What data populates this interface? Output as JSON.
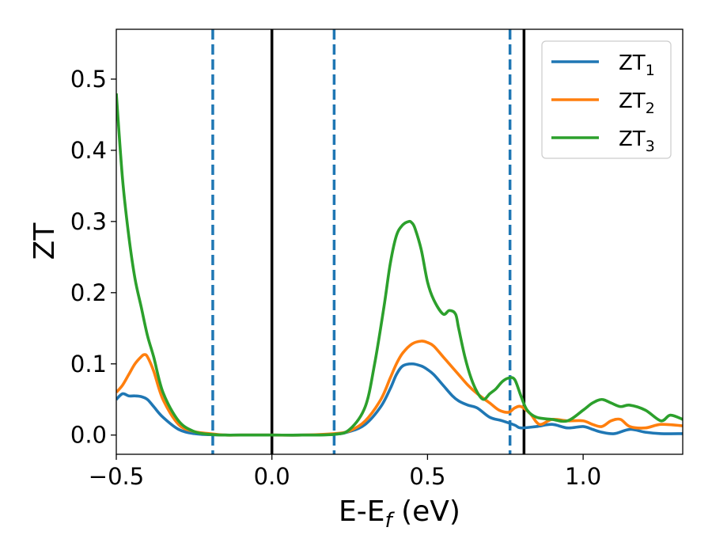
{
  "chart_data": {
    "type": "line",
    "xlabel": {
      "main": "E-E",
      "sub": "f",
      "unit": " (eV)"
    },
    "ylabel": "ZT",
    "xlim": [
      -0.5,
      1.32
    ],
    "ylim": [
      -0.027,
      0.57
    ],
    "xticks": [
      -0.5,
      0.0,
      0.5,
      1.0
    ],
    "xtick_labels": [
      "−0.5",
      "0.0",
      "0.5",
      "1.0"
    ],
    "yticks": [
      0.0,
      0.1,
      0.2,
      0.3,
      0.4,
      0.5
    ],
    "ytick_labels": [
      "0.0",
      "0.1",
      "0.2",
      "0.3",
      "0.4",
      "0.5"
    ],
    "grid": false,
    "legend_position": "top-right",
    "vlines": [
      {
        "x": -0.19,
        "style": "dashed",
        "color": "#1f77b4"
      },
      {
        "x": 0.0,
        "style": "solid",
        "color": "#000000"
      },
      {
        "x": 0.2,
        "style": "dashed",
        "color": "#1f77b4"
      },
      {
        "x": 0.765,
        "style": "dashed",
        "color": "#1f77b4"
      },
      {
        "x": 0.81,
        "style": "solid",
        "color": "#000000"
      }
    ],
    "series": [
      {
        "name": "ZT",
        "name_sub": "1",
        "color": "#1f77b4",
        "x": [
          -0.5,
          -0.48,
          -0.46,
          -0.44,
          -0.42,
          -0.4,
          -0.38,
          -0.35,
          -0.3,
          -0.25,
          -0.2,
          -0.15,
          -0.1,
          0.0,
          0.1,
          0.2,
          0.25,
          0.3,
          0.35,
          0.38,
          0.4,
          0.42,
          0.45,
          0.48,
          0.5,
          0.52,
          0.55,
          0.58,
          0.6,
          0.63,
          0.66,
          0.7,
          0.74,
          0.78,
          0.8,
          0.85,
          0.9,
          0.95,
          1.0,
          1.03,
          1.06,
          1.1,
          1.15,
          1.2,
          1.25,
          1.32
        ],
        "y": [
          0.05,
          0.058,
          0.055,
          0.055,
          0.054,
          0.05,
          0.04,
          0.025,
          0.008,
          0.002,
          0.0005,
          0.0,
          0.0,
          0.0,
          0.0,
          0.001,
          0.005,
          0.015,
          0.04,
          0.065,
          0.085,
          0.097,
          0.1,
          0.097,
          0.092,
          0.085,
          0.07,
          0.055,
          0.048,
          0.042,
          0.038,
          0.025,
          0.02,
          0.014,
          0.01,
          0.012,
          0.015,
          0.01,
          0.012,
          0.008,
          0.004,
          0.002,
          0.008,
          0.004,
          0.002,
          0.002
        ]
      },
      {
        "name": "ZT",
        "name_sub": "2",
        "color": "#ff7f0e",
        "x": [
          -0.5,
          -0.48,
          -0.46,
          -0.44,
          -0.42,
          -0.41,
          -0.4,
          -0.38,
          -0.35,
          -0.3,
          -0.25,
          -0.2,
          -0.15,
          -0.1,
          0.0,
          0.1,
          0.2,
          0.25,
          0.3,
          0.35,
          0.38,
          0.4,
          0.42,
          0.45,
          0.48,
          0.5,
          0.52,
          0.55,
          0.58,
          0.6,
          0.63,
          0.66,
          0.7,
          0.73,
          0.76,
          0.78,
          0.8,
          0.83,
          0.86,
          0.9,
          0.95,
          1.0,
          1.03,
          1.06,
          1.09,
          1.12,
          1.15,
          1.2,
          1.25,
          1.32
        ],
        "y": [
          0.06,
          0.07,
          0.085,
          0.1,
          0.11,
          0.113,
          0.11,
          0.09,
          0.05,
          0.015,
          0.005,
          0.002,
          0.0,
          0.0,
          0.0,
          0.0,
          0.002,
          0.006,
          0.02,
          0.05,
          0.08,
          0.1,
          0.115,
          0.128,
          0.132,
          0.13,
          0.125,
          0.11,
          0.095,
          0.085,
          0.07,
          0.058,
          0.045,
          0.035,
          0.032,
          0.038,
          0.04,
          0.03,
          0.015,
          0.022,
          0.02,
          0.02,
          0.015,
          0.012,
          0.02,
          0.022,
          0.012,
          0.01,
          0.015,
          0.013
        ]
      },
      {
        "name": "ZT",
        "name_sub": "3",
        "color": "#2ca02c",
        "x": [
          -0.5,
          -0.48,
          -0.46,
          -0.44,
          -0.42,
          -0.4,
          -0.38,
          -0.35,
          -0.3,
          -0.25,
          -0.2,
          -0.15,
          -0.1,
          0.0,
          0.1,
          0.2,
          0.25,
          0.3,
          0.33,
          0.36,
          0.38,
          0.4,
          0.42,
          0.44,
          0.45,
          0.46,
          0.48,
          0.5,
          0.52,
          0.55,
          0.57,
          0.59,
          0.6,
          0.62,
          0.64,
          0.66,
          0.68,
          0.7,
          0.72,
          0.74,
          0.76,
          0.78,
          0.8,
          0.82,
          0.85,
          0.9,
          0.95,
          1.0,
          1.03,
          1.06,
          1.09,
          1.12,
          1.15,
          1.2,
          1.25,
          1.28,
          1.32
        ],
        "y": [
          0.48,
          0.36,
          0.28,
          0.22,
          0.18,
          0.14,
          0.11,
          0.06,
          0.02,
          0.005,
          0.001,
          0.0,
          0.0,
          0.0,
          0.0,
          0.001,
          0.008,
          0.04,
          0.1,
          0.18,
          0.24,
          0.28,
          0.295,
          0.3,
          0.298,
          0.29,
          0.26,
          0.215,
          0.19,
          0.17,
          0.175,
          0.17,
          0.15,
          0.11,
          0.08,
          0.06,
          0.05,
          0.058,
          0.065,
          0.075,
          0.08,
          0.078,
          0.055,
          0.035,
          0.025,
          0.022,
          0.02,
          0.035,
          0.045,
          0.05,
          0.045,
          0.04,
          0.042,
          0.035,
          0.02,
          0.028,
          0.022
        ]
      }
    ]
  }
}
